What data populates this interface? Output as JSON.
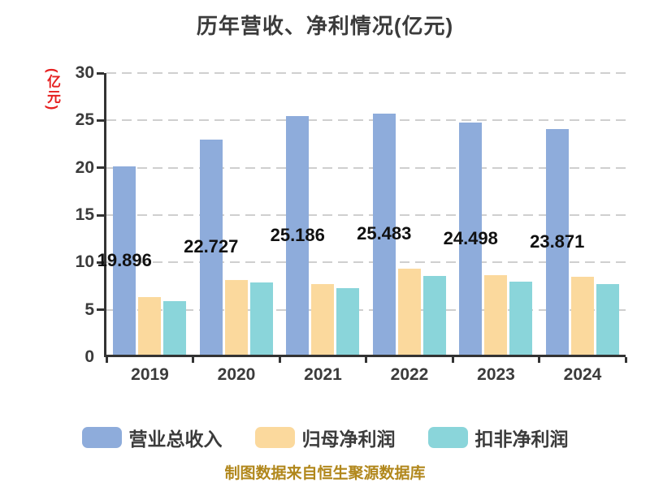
{
  "title": "历年营收、净利情况(亿元)",
  "footer": {
    "text": "制图数据来自恒生聚源数据库"
  },
  "colors": {
    "background": "#ffffff",
    "title_text": "#3b3b3b",
    "axis_line": "#333333",
    "gridline": "#cfcfcf",
    "tick_label": "#3b3b3b",
    "value_label": "#111111",
    "y_axis_name": "#e62020",
    "footer_text": "#b1871b",
    "series_blue": "#8eacdb",
    "series_orange": "#fbd99d",
    "series_teal": "#8ad5da"
  },
  "chart_data": {
    "type": "bar",
    "title": "历年营收、净利情况(亿元)",
    "ylabel": "(亿元)",
    "xlabel": "",
    "categories": [
      "2019",
      "2020",
      "2021",
      "2022",
      "2023",
      "2024"
    ],
    "series": [
      {
        "name": "营业总收入",
        "color": "#8eacdb",
        "values": [
          19.896,
          22.727,
          25.186,
          25.483,
          24.498,
          23.871
        ],
        "data_labels": [
          "19.896",
          "22.727",
          "25.186",
          "25.483",
          "24.498",
          "23.871"
        ]
      },
      {
        "name": "归母净利润",
        "color": "#fbd99d",
        "values": [
          6.1,
          7.85,
          7.5,
          9.05,
          8.4,
          8.2
        ],
        "data_labels": []
      },
      {
        "name": "扣非净利润",
        "color": "#8ad5da",
        "values": [
          5.7,
          7.65,
          7.0,
          8.3,
          7.7,
          7.45
        ],
        "data_labels": []
      }
    ],
    "ylim": [
      0,
      30
    ],
    "yticks": [
      0,
      5,
      10,
      15,
      20,
      25,
      30
    ],
    "grid": true,
    "gridline_style": "dashed",
    "legend_position": "bottom"
  }
}
